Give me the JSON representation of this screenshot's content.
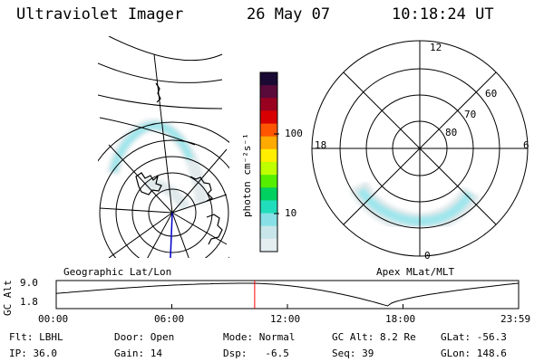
{
  "header": {
    "instrument": "Ultraviolet Imager",
    "date": "26 May 07",
    "time": "10:18:24 UT"
  },
  "colorbar": {
    "label": "photon cm⁻²s⁻¹",
    "ticks": [
      "100",
      "10"
    ],
    "colors": [
      "#1a0a33",
      "#5a0a3a",
      "#9a0020",
      "#d80000",
      "#ff5500",
      "#ffaa00",
      "#ffee00",
      "#bfff00",
      "#55ee00",
      "#00d060",
      "#22ddbb",
      "#88e0e6",
      "#c8e6ea",
      "#e4eef0"
    ]
  },
  "left_map": {
    "label": "Geographic Lat/Lon"
  },
  "right_map": {
    "label": "Apex MLat/MLT",
    "mlt_labels": [
      "12",
      "18",
      "6",
      "0"
    ],
    "mlat_labels": [
      "60",
      "70",
      "80"
    ]
  },
  "altitude_plot": {
    "ylabel": "GC Alt",
    "yticks": [
      "9.0",
      "1.8"
    ],
    "xticks": [
      "00:00",
      "06:00",
      "12:00",
      "18:00",
      "23:59"
    ],
    "current_time_marker": "10:18",
    "marker_color": "#ff0000"
  },
  "status": {
    "row1": [
      "Flt: LBHL",
      "Door: Open",
      "Mode: Normal",
      "GC Alt: 8.2 Re",
      "GLat: -56.3"
    ],
    "row2": [
      "IP: 36.0",
      "Gain: 14",
      "Dsp:   -6.5",
      "Seq: 39",
      "GLon: 148.6"
    ]
  },
  "colors": {
    "aurora": "#9fe6ec",
    "aurora_faint": "#dfe8ea",
    "line": "#000000"
  }
}
